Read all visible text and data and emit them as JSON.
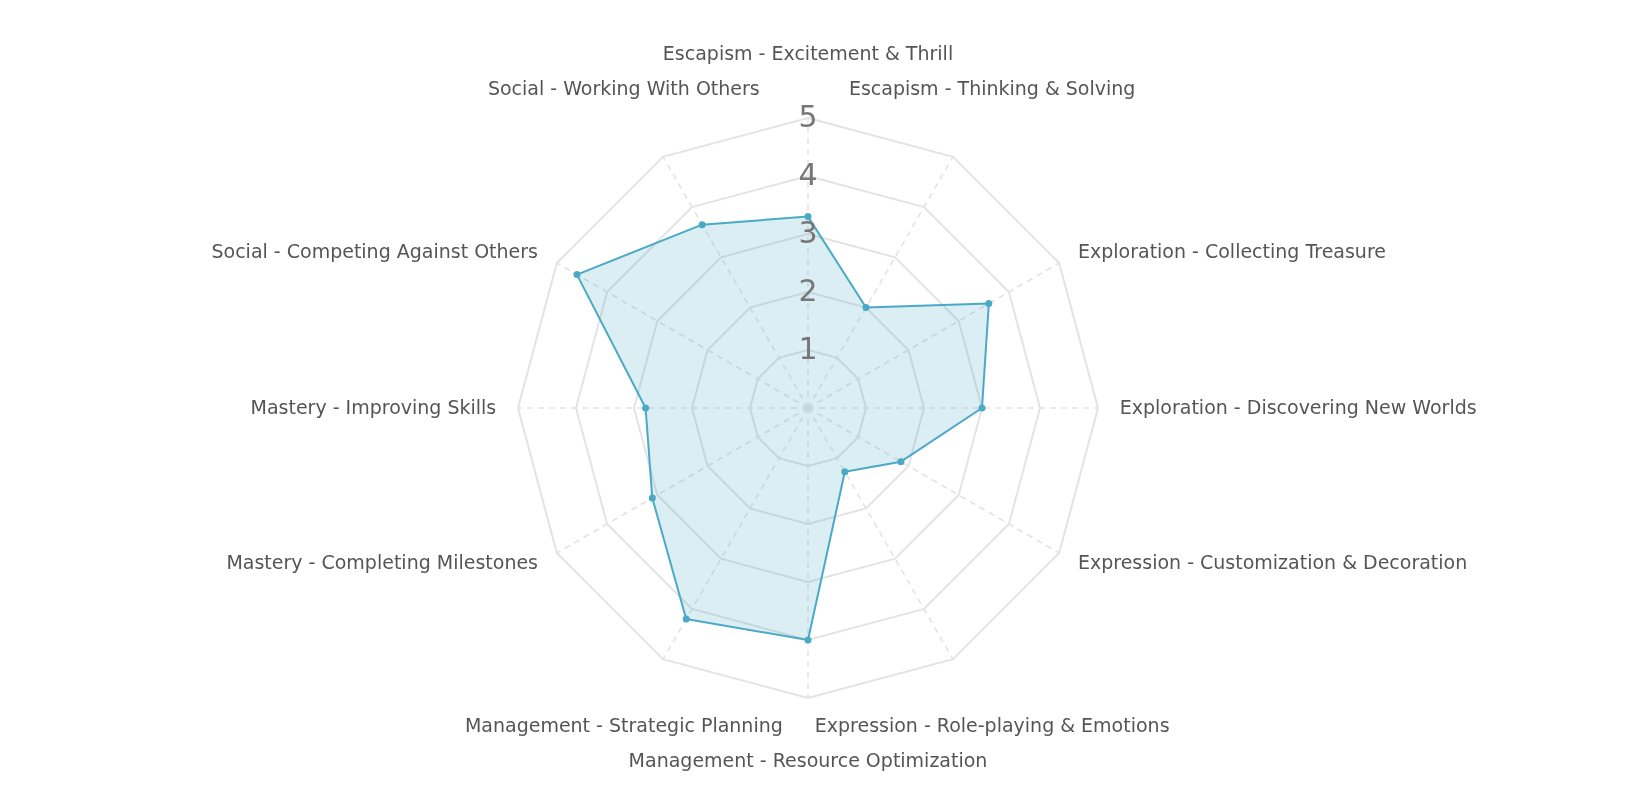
{
  "chart_data": {
    "type": "radar",
    "categories": [
      "Escapism - Excitement & Thrill",
      "Escapism - Thinking & Solving",
      "Exploration - Collecting Treasure",
      "Exploration - Discovering New Worlds",
      "Expression - Customization & Decoration",
      "Expression - Role-playing & Emotions",
      "Management - Resource Optimization",
      "Management - Strategic Planning",
      "Mastery - Completing Milestones",
      "Mastery - Improving Skills",
      "Social - Competing Against Others",
      "Social - Working With Others"
    ],
    "series": [
      {
        "color": "#4aaac6",
        "values": [
          3.3,
          2,
          3.6,
          3,
          1.85,
          1.27,
          4,
          4.2,
          3.1,
          2.8,
          4.6,
          3.65
        ]
      }
    ],
    "ylim": [
      0,
      5
    ],
    "yticks": [
      1,
      2,
      3,
      4,
      5
    ],
    "grid": true,
    "marker": "circle"
  }
}
